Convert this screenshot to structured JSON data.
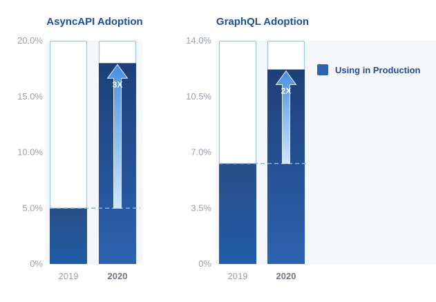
{
  "colors": {
    "outline": "#8ec9ec",
    "bar_2019_top": "#2a4f86",
    "bar_2019_bottom": "#1f5ca8",
    "bar_2020_top": "#1e3f78",
    "bar_2020_bottom": "#2d63b0",
    "arrow_light": "#cfe8ff",
    "arrow_dark": "#4a8ede",
    "dashed": "#7fb6e3",
    "band": "#f5f7fb",
    "title": "#1b4f9c"
  },
  "legend": {
    "label": "Using in Production",
    "icon": "square-legend-icon"
  },
  "chart_data": [
    {
      "type": "bar",
      "title": "AsyncAPI Adoption",
      "categories": [
        "2019",
        "2020"
      ],
      "values": [
        5.0,
        18.0
      ],
      "capacity": 20.0,
      "ylim": [
        0,
        20
      ],
      "yticks": [
        0,
        5,
        10,
        15,
        20
      ],
      "ytick_labels": [
        "0%",
        "5.0%",
        "10.0%",
        "15.0%",
        "20.0%"
      ],
      "annotation": {
        "label": "3X",
        "from": 5.0,
        "to": 18.0
      },
      "legend": "Using in Production"
    },
    {
      "type": "bar",
      "title": "GraphQL Adoption",
      "categories": [
        "2019",
        "2020"
      ],
      "values": [
        6.3,
        12.2
      ],
      "capacity": 14.0,
      "ylim": [
        0,
        14
      ],
      "yticks": [
        0,
        3.5,
        7,
        10.5,
        14
      ],
      "ytick_labels": [
        "0%",
        "3.5%",
        "7.0%",
        "10.5%",
        "14.0%"
      ],
      "annotation": {
        "label": "2X",
        "from": 6.3,
        "to": 12.2
      },
      "legend": "Using in Production"
    }
  ]
}
